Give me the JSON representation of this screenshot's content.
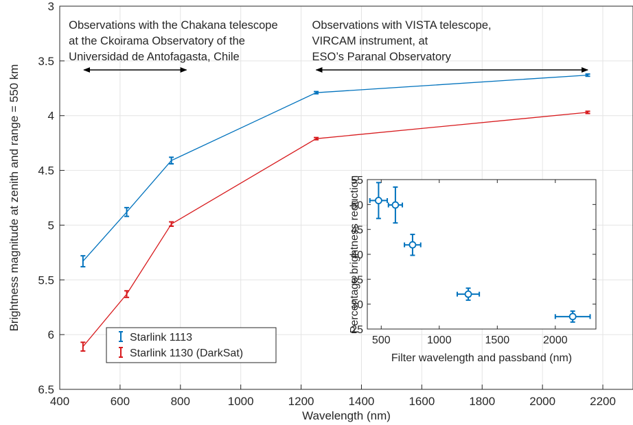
{
  "chart_data": [
    {
      "type": "line",
      "xlabel": "Wavelength (nm)",
      "ylabel": "Brightness magnitude at zenith and range = 550 km",
      "xlim": [
        400,
        2300
      ],
      "ylim": [
        6.5,
        3
      ],
      "y_reversed": true,
      "xticks": [
        "400",
        "600",
        "800",
        "1000",
        "1200",
        "1400",
        "1600",
        "1800",
        "2000",
        "2200"
      ],
      "yticks": [
        "3",
        "3.5",
        "4",
        "4.5",
        "5",
        "5.5",
        "6",
        "6.5"
      ],
      "grid": true,
      "legend_position": "bottom-left",
      "series": [
        {
          "name": "Starlink 1113",
          "color": "#0072BD",
          "x": [
            477,
            622,
            770,
            1250,
            2150
          ],
          "y": [
            5.33,
            4.88,
            4.41,
            3.79,
            3.63
          ],
          "err": [
            0.05,
            0.04,
            0.03,
            0.01,
            0.01
          ]
        },
        {
          "name": "Starlink 1130 (DarkSat)",
          "color": "#D7191C",
          "x": [
            477,
            622,
            770,
            1250,
            2150
          ],
          "y": [
            6.11,
            5.63,
            4.99,
            4.21,
            3.97
          ],
          "err": [
            0.04,
            0.03,
            0.02,
            0.01,
            0.01
          ]
        }
      ],
      "annotations": [
        {
          "lines": [
            "Observations with the Chakana telescope",
            "at the Ckoirama Observatory of the",
            "Universidad de Antofagasta, Chile"
          ],
          "arrow_x": [
            480,
            820
          ]
        },
        {
          "lines": [
            "Observations with VISTA telescope,",
            "VIRCAM instrument, at",
            "ESO’s Paranal Observatory"
          ],
          "arrow_x": [
            1250,
            2150
          ]
        }
      ]
    },
    {
      "type": "scatter",
      "inset": true,
      "xlabel": "Filter wavelength and passband (nm)",
      "ylabel": "Percentage brightness reduction",
      "xlim": [
        380,
        2350
      ],
      "ylim": [
        25,
        55
      ],
      "xticks": [
        "500",
        "1000",
        "1500",
        "2000"
      ],
      "yticks": [
        "25",
        "30",
        "35",
        "40",
        "45",
        "50",
        "55"
      ],
      "grid": false,
      "color": "#0072BD",
      "points": [
        {
          "x": 477,
          "y": 50.8,
          "xerr": 75,
          "yerr": 3.6
        },
        {
          "x": 622,
          "y": 49.9,
          "xerr": 60,
          "yerr": 3.6
        },
        {
          "x": 770,
          "y": 41.9,
          "xerr": 70,
          "yerr": 2.1
        },
        {
          "x": 1250,
          "y": 32.0,
          "xerr": 95,
          "yerr": 1.2
        },
        {
          "x": 2150,
          "y": 27.5,
          "xerr": 150,
          "yerr": 1.1
        }
      ]
    }
  ]
}
